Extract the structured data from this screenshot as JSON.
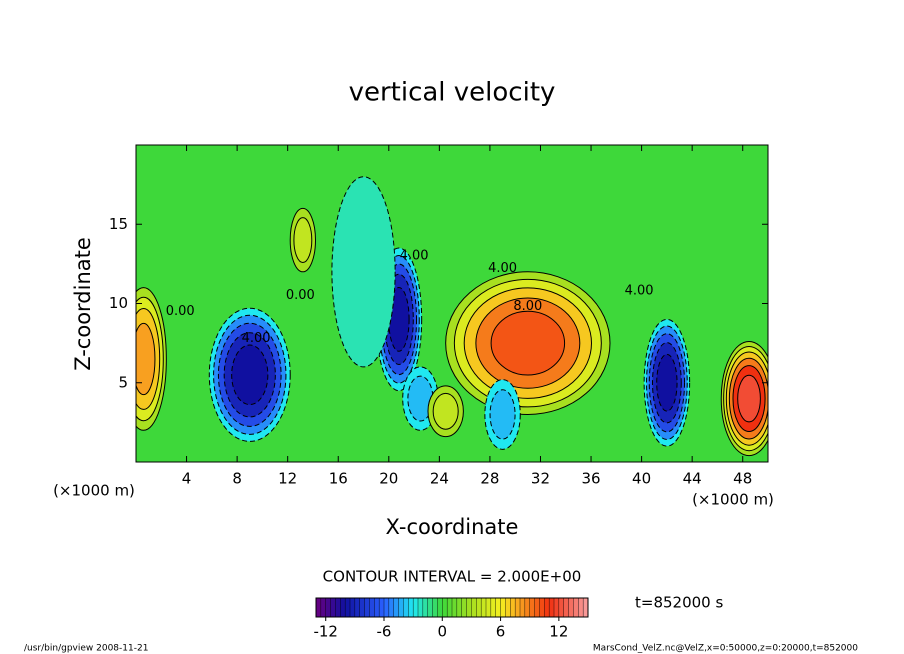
{
  "chart_data": {
    "type": "contour",
    "title": "vertical velocity",
    "x_label": "X-coordinate",
    "y_label": "Z-coordinate",
    "x_unit": "(×1000 m)",
    "y_unit": "(×1000 m)",
    "xlim": [
      0,
      50
    ],
    "ylim": [
      0,
      20
    ],
    "xticks": [
      4,
      8,
      12,
      16,
      20,
      24,
      28,
      32,
      36,
      40,
      44,
      48
    ],
    "yticks": [
      5,
      10,
      15
    ],
    "background_value": 0,
    "contour_interval": 2,
    "contour_interval_text": "CONTOUR INTERVAL = 2.000E+00",
    "time_text": "t=852000 s",
    "footer_left": "/usr/bin/gpview  2008-11-21",
    "footer_right": "MarsCond_VelZ.nc@VelZ,x=0:50000,z=0:20000,t=852000",
    "colormap": [
      {
        "value": -13,
        "color": "#6a0080"
      },
      {
        "value": -10,
        "color": "#1010a0"
      },
      {
        "value": -6,
        "color": "#2a60ff"
      },
      {
        "value": -3,
        "color": "#20e8f0"
      },
      {
        "value": 0,
        "color": "#3ed83a"
      },
      {
        "value": 3,
        "color": "#a8e020"
      },
      {
        "value": 6,
        "color": "#f4f020"
      },
      {
        "value": 8,
        "color": "#f8a020"
      },
      {
        "value": 11,
        "color": "#f03010"
      },
      {
        "value": 15,
        "color": "#f8a0a0"
      }
    ],
    "colorbar": {
      "lim": [
        -13,
        15
      ],
      "step": 0.5,
      "ticks": [
        -12,
        -6,
        0,
        6,
        12
      ]
    },
    "features": [
      {
        "x": 0.6,
        "z": 6.5,
        "rx": 1.8,
        "rz": 4.5,
        "value": 8
      },
      {
        "x": 9,
        "z": 5.5,
        "rx": 3.2,
        "rz": 4.2,
        "value": -10
      },
      {
        "x": 20.8,
        "z": 9,
        "rx": 1.8,
        "rz": 4.5,
        "value": -10
      },
      {
        "x": 31,
        "z": 7.5,
        "rx": 6.5,
        "rz": 4.5,
        "value": 10
      },
      {
        "x": 42,
        "z": 5,
        "rx": 1.8,
        "rz": 4,
        "value": -10
      },
      {
        "x": 48.5,
        "z": 4,
        "rx": 2.2,
        "rz": 3.6,
        "value": 12
      },
      {
        "x": 22.5,
        "z": 4,
        "rx": 1.4,
        "rz": 2,
        "value": -4
      },
      {
        "x": 29,
        "z": 3,
        "rx": 1.4,
        "rz": 2.2,
        "value": -4
      },
      {
        "x": 24.5,
        "z": 3.2,
        "rx": 1.4,
        "rz": 1.6,
        "value": 4
      },
      {
        "x": 13.2,
        "z": 14,
        "rx": 1,
        "rz": 2,
        "value": 4
      },
      {
        "x": 18,
        "z": 12,
        "rx": 2.5,
        "rz": 6,
        "value": -2
      }
    ],
    "contour_labels": [
      {
        "text": "4.00",
        "x": 29,
        "z": 12.2
      },
      {
        "text": "8.00",
        "x": 31,
        "z": 9.8
      },
      {
        "text": "4.00",
        "x": 39.8,
        "z": 10.8
      },
      {
        "text": "0.00",
        "x": 3.5,
        "z": 9.5
      },
      {
        "text": "4.00",
        "x": 9.5,
        "z": 7.8
      },
      {
        "text": "0.00",
        "x": 13,
        "z": 10.5
      },
      {
        "text": "4.00",
        "x": 22,
        "z": 13
      }
    ]
  }
}
